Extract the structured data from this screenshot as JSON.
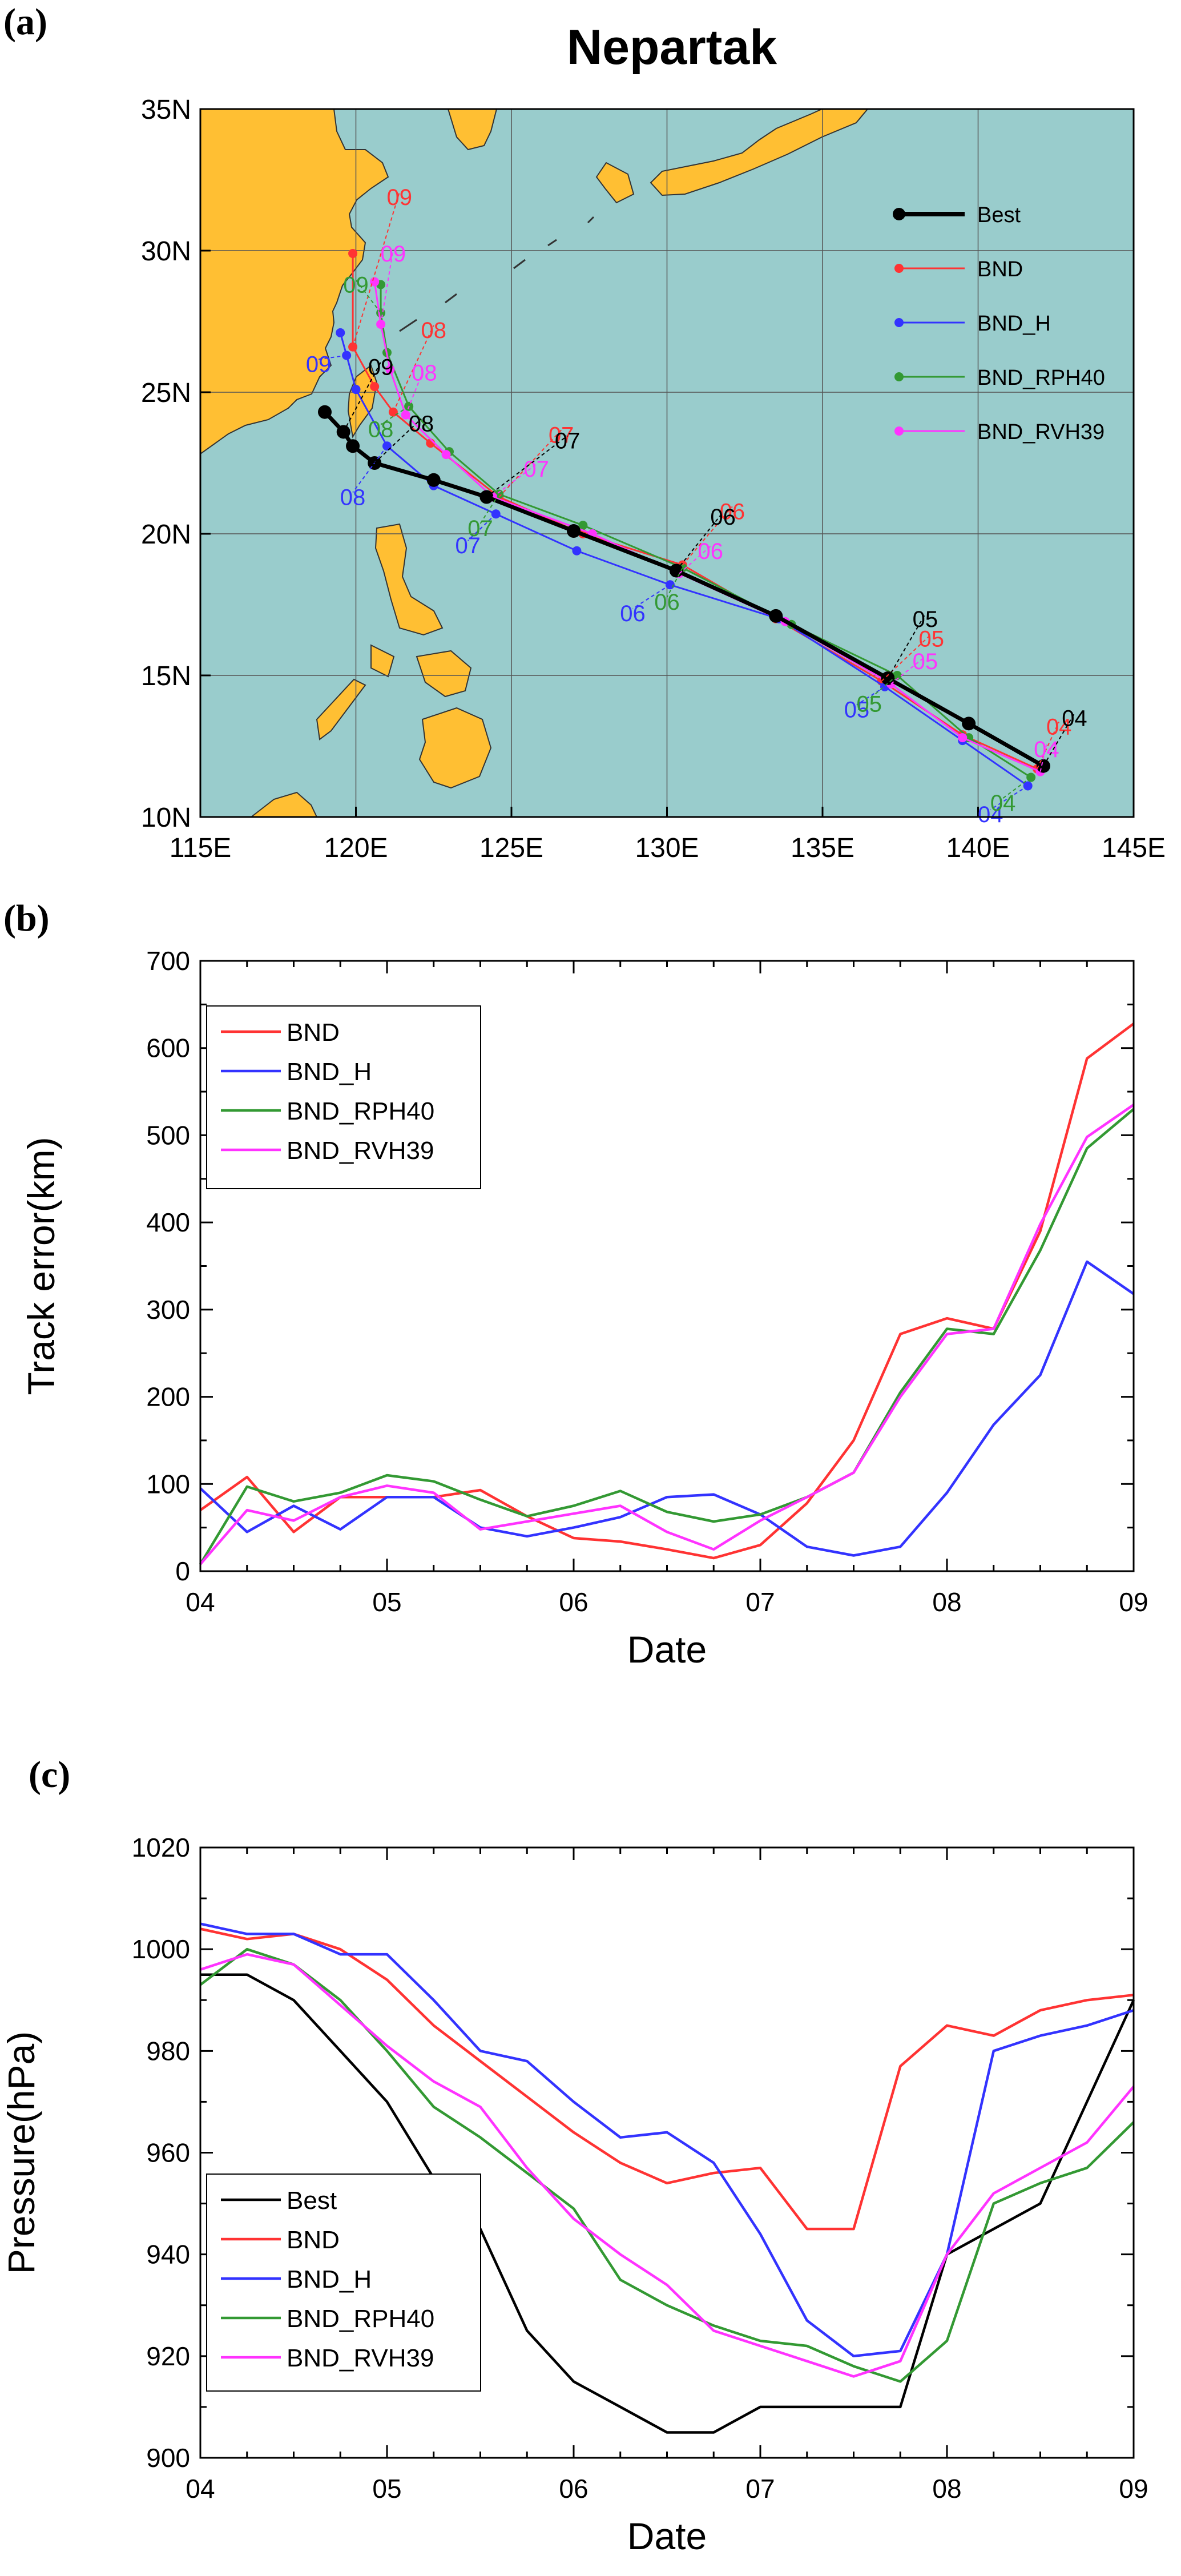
{
  "panels": {
    "a": {
      "label": "(a)"
    },
    "b": {
      "label": "(b)"
    },
    "c": {
      "label": "(c)"
    }
  },
  "chart_data": [
    {
      "id": "a",
      "type": "line",
      "title": "Nepartak",
      "xlabel": "",
      "ylabel": "",
      "xlim": [
        115,
        145
      ],
      "ylim": [
        10,
        35
      ],
      "x_ticks": [
        "115E",
        "120E",
        "125E",
        "130E",
        "135E",
        "140E",
        "145E"
      ],
      "y_ticks": [
        "10N",
        "15N",
        "20N",
        "25N",
        "30N",
        "35N"
      ],
      "grid": true,
      "legend_position": "top-right",
      "colors": {
        "ocean": "#99cccc",
        "land": "#ffbf33"
      },
      "series": [
        {
          "name": "Best",
          "color": "#000000",
          "width": 7,
          "points": [
            [
              142.1,
              11.8
            ],
            [
              139.7,
              13.3
            ],
            [
              137.1,
              14.9
            ],
            [
              133.5,
              17.1
            ],
            [
              130.3,
              18.7
            ],
            [
              127.0,
              20.1
            ],
            [
              124.2,
              21.3
            ],
            [
              122.5,
              21.9
            ],
            [
              120.6,
              22.5
            ],
            [
              119.9,
              23.1
            ],
            [
              119.6,
              23.6
            ],
            [
              119.0,
              24.3
            ]
          ],
          "day_labels": [
            {
              "text": "04",
              "lon": 143.1,
              "lat": 13.5
            },
            {
              "text": "05",
              "lon": 138.3,
              "lat": 17.0
            },
            {
              "text": "06",
              "lon": 131.8,
              "lat": 20.6
            },
            {
              "text": "07",
              "lon": 126.8,
              "lat": 23.3
            },
            {
              "text": "08",
              "lon": 122.1,
              "lat": 23.9
            },
            {
              "text": "09",
              "lon": 120.8,
              "lat": 25.9
            }
          ]
        },
        {
          "name": "BND",
          "color": "#ff3333",
          "width": 3,
          "points": [
            [
              141.9,
              11.7
            ],
            [
              139.5,
              12.9
            ],
            [
              136.9,
              14.8
            ],
            [
              133.5,
              17.0
            ],
            [
              130.5,
              18.9
            ],
            [
              127.3,
              20.0
            ],
            [
              124.6,
              21.3
            ],
            [
              122.4,
              23.2
            ],
            [
              121.2,
              24.3
            ],
            [
              120.6,
              25.2
            ],
            [
              119.9,
              26.6
            ],
            [
              119.9,
              29.9
            ]
          ],
          "day_labels": [
            {
              "text": "04",
              "lon": 142.6,
              "lat": 13.2
            },
            {
              "text": "05",
              "lon": 138.5,
              "lat": 16.3
            },
            {
              "text": "06",
              "lon": 132.1,
              "lat": 20.8
            },
            {
              "text": "07",
              "lon": 126.6,
              "lat": 23.5
            },
            {
              "text": "08",
              "lon": 122.5,
              "lat": 27.2
            },
            {
              "text": "09",
              "lon": 121.4,
              "lat": 31.9
            }
          ]
        },
        {
          "name": "BND_H",
          "color": "#3333ff",
          "width": 3,
          "points": [
            [
              141.6,
              11.1
            ],
            [
              139.5,
              12.7
            ],
            [
              137.0,
              14.6
            ],
            [
              133.6,
              17.0
            ],
            [
              130.1,
              18.2
            ],
            [
              127.1,
              19.4
            ],
            [
              124.5,
              20.7
            ],
            [
              122.5,
              21.7
            ],
            [
              121.0,
              23.1
            ],
            [
              120.0,
              25.1
            ],
            [
              119.7,
              26.3
            ],
            [
              119.5,
              27.1
            ]
          ],
          "day_labels": [
            {
              "text": "04",
              "lon": 140.4,
              "lat": 10.1
            },
            {
              "text": "05",
              "lon": 136.1,
              "lat": 13.8
            },
            {
              "text": "06",
              "lon": 128.9,
              "lat": 17.2
            },
            {
              "text": "07",
              "lon": 123.6,
              "lat": 19.6
            },
            {
              "text": "08",
              "lon": 119.9,
              "lat": 21.3
            },
            {
              "text": "09",
              "lon": 118.8,
              "lat": 26.0
            }
          ]
        },
        {
          "name": "BND_RPH40",
          "color": "#339933",
          "width": 3,
          "points": [
            [
              141.7,
              11.4
            ],
            [
              139.7,
              12.8
            ],
            [
              137.4,
              15.0
            ],
            [
              134.0,
              16.8
            ],
            [
              130.5,
              18.8
            ],
            [
              127.3,
              20.3
            ],
            [
              124.6,
              21.4
            ],
            [
              123.0,
              22.9
            ],
            [
              121.7,
              24.5
            ],
            [
              121.0,
              26.4
            ],
            [
              120.8,
              27.8
            ],
            [
              120.8,
              28.8
            ]
          ],
          "day_labels": [
            {
              "text": "04",
              "lon": 140.8,
              "lat": 10.5
            },
            {
              "text": "05",
              "lon": 136.5,
              "lat": 14.0
            },
            {
              "text": "06",
              "lon": 130.0,
              "lat": 17.6
            },
            {
              "text": "07",
              "lon": 124.0,
              "lat": 20.2
            },
            {
              "text": "08",
              "lon": 120.8,
              "lat": 23.7
            },
            {
              "text": "09",
              "lon": 120.0,
              "lat": 28.8
            }
          ]
        },
        {
          "name": "BND_RVH39",
          "color": "#ff33ff",
          "width": 3,
          "points": [
            [
              142.0,
              11.6
            ],
            [
              139.5,
              12.8
            ],
            [
              137.2,
              14.7
            ],
            [
              133.8,
              16.9
            ],
            [
              130.4,
              18.6
            ],
            [
              127.6,
              20.0
            ],
            [
              124.4,
              21.3
            ],
            [
              122.9,
              22.8
            ],
            [
              121.6,
              24.2
            ],
            [
              121.1,
              25.8
            ],
            [
              120.8,
              27.4
            ],
            [
              120.6,
              28.9
            ]
          ],
          "day_labels": [
            {
              "text": "04",
              "lon": 142.2,
              "lat": 12.4
            },
            {
              "text": "05",
              "lon": 138.3,
              "lat": 15.5
            },
            {
              "text": "06",
              "lon": 131.4,
              "lat": 19.4
            },
            {
              "text": "07",
              "lon": 125.8,
              "lat": 22.3
            },
            {
              "text": "08",
              "lon": 122.2,
              "lat": 25.7
            },
            {
              "text": "09",
              "lon": 121.2,
              "lat": 29.9
            }
          ]
        }
      ]
    },
    {
      "id": "b",
      "type": "line",
      "title": "",
      "xlabel": "Date",
      "ylabel": "Track error(km)",
      "xlim": [
        4,
        9
      ],
      "ylim": [
        0,
        700
      ],
      "x_ticks": [
        "04",
        "05",
        "06",
        "07",
        "08",
        "09"
      ],
      "y_ticks": [
        "0",
        "100",
        "200",
        "300",
        "400",
        "500",
        "600",
        "700"
      ],
      "legend_position": "top-left",
      "x": [
        4.0,
        4.25,
        4.5,
        4.75,
        5.0,
        5.25,
        5.5,
        5.75,
        6.0,
        6.25,
        6.5,
        6.75,
        7.0,
        7.25,
        7.5,
        7.75,
        8.0,
        8.25,
        8.5,
        8.75,
        9.0
      ],
      "series": [
        {
          "name": "BND",
          "color": "#ff3333",
          "values": [
            70,
            108,
            45,
            85,
            85,
            85,
            93,
            63,
            38,
            34,
            25,
            15,
            30,
            78,
            150,
            272,
            290,
            278,
            390,
            588,
            628
          ]
        },
        {
          "name": "BND_H",
          "color": "#3333ff",
          "values": [
            95,
            45,
            75,
            48,
            85,
            85,
            50,
            40,
            50,
            62,
            85,
            88,
            65,
            28,
            18,
            28,
            90,
            168,
            225,
            355,
            318
          ]
        },
        {
          "name": "BND_RPH40",
          "color": "#339933",
          "values": [
            8,
            97,
            80,
            90,
            110,
            103,
            82,
            63,
            75,
            92,
            68,
            57,
            65,
            85,
            113,
            205,
            278,
            272,
            368,
            485,
            530
          ]
        },
        {
          "name": "BND_RVH39",
          "color": "#ff33ff",
          "values": [
            8,
            70,
            58,
            85,
            98,
            90,
            48,
            57,
            66,
            75,
            45,
            25,
            58,
            85,
            113,
            200,
            272,
            278,
            398,
            498,
            535
          ]
        }
      ]
    },
    {
      "id": "c",
      "type": "line",
      "title": "",
      "xlabel": "Date",
      "ylabel": "Pressure(hPa)",
      "xlim": [
        4,
        9
      ],
      "ylim": [
        900,
        1020
      ],
      "x_ticks": [
        "04",
        "05",
        "06",
        "07",
        "08",
        "09"
      ],
      "y_ticks": [
        "900",
        "920",
        "940",
        "960",
        "980",
        "1000",
        "1020"
      ],
      "legend_position": "bottom-left",
      "x": [
        4.0,
        4.25,
        4.5,
        4.75,
        5.0,
        5.25,
        5.5,
        5.75,
        6.0,
        6.25,
        6.5,
        6.75,
        7.0,
        7.25,
        7.5,
        7.75,
        8.0,
        8.25,
        8.5,
        8.75,
        9.0
      ],
      "series": [
        {
          "name": "Best",
          "color": "#000000",
          "values": [
            995,
            995,
            990,
            980,
            970,
            955,
            945,
            925,
            915,
            910,
            905,
            905,
            910,
            910,
            910,
            910,
            940,
            945,
            950,
            970,
            990
          ]
        },
        {
          "name": "BND",
          "color": "#ff3333",
          "values": [
            1004,
            1002,
            1003,
            1000,
            994,
            985,
            978,
            971,
            964,
            958,
            954,
            956,
            957,
            945,
            945,
            977,
            985,
            983,
            988,
            990,
            991
          ]
        },
        {
          "name": "BND_H",
          "color": "#3333ff",
          "values": [
            1005,
            1003,
            1003,
            999,
            999,
            990,
            980,
            978,
            970,
            963,
            964,
            958,
            944,
            927,
            920,
            921,
            940,
            980,
            983,
            985,
            988
          ]
        },
        {
          "name": "BND_RPH40",
          "color": "#339933",
          "values": [
            993,
            1000,
            997,
            990,
            980,
            969,
            963,
            956,
            949,
            935,
            930,
            926,
            923,
            922,
            918,
            915,
            923,
            950,
            954,
            957,
            966
          ]
        },
        {
          "name": "BND_RVH39",
          "color": "#ff33ff",
          "values": [
            996,
            999,
            997,
            989,
            981,
            974,
            969,
            957,
            947,
            940,
            934,
            925,
            922,
            919,
            916,
            919,
            940,
            952,
            957,
            962,
            973
          ]
        }
      ]
    }
  ]
}
